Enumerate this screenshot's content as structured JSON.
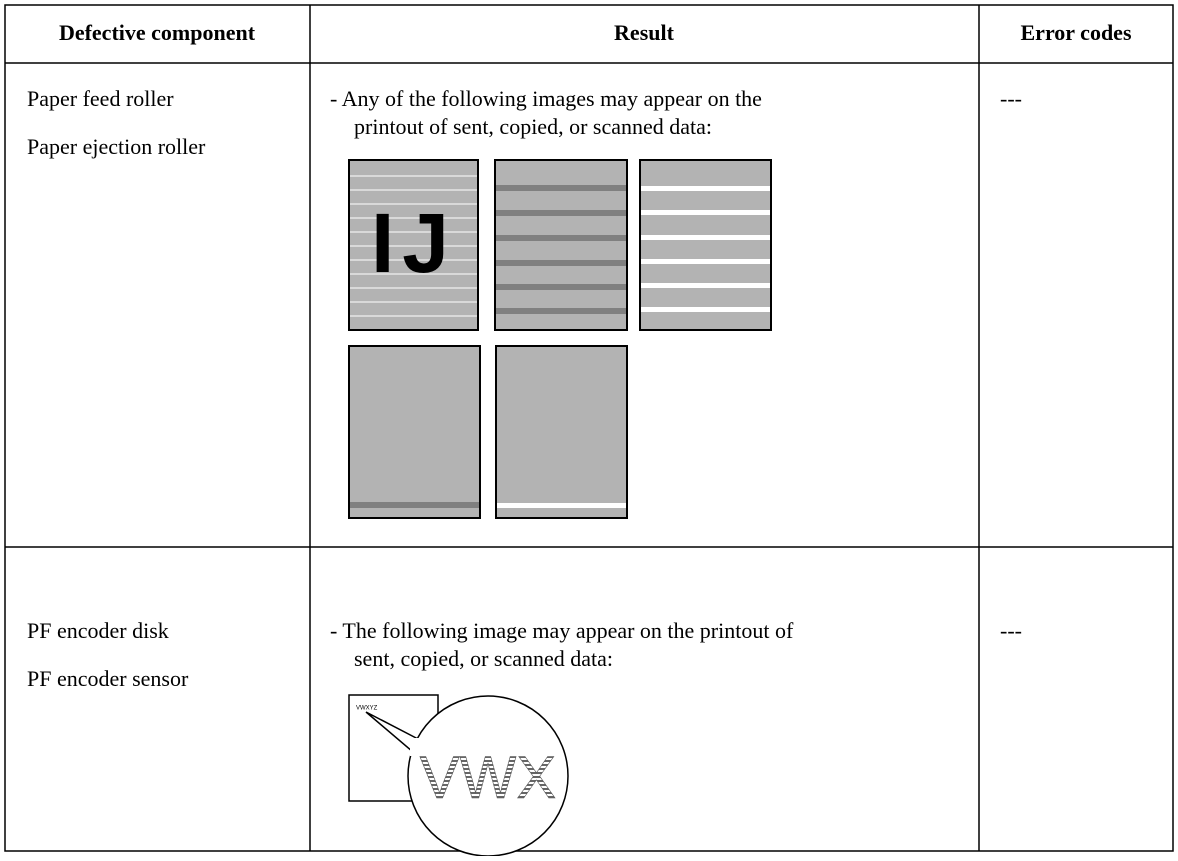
{
  "table": {
    "header": [
      "Defective component",
      "Result",
      "Error codes"
    ],
    "rows": [
      {
        "components": [
          "Paper feed roller",
          "Paper ejection roller"
        ],
        "result": [
          "- Any of the following images may appear on the",
          "printout of sent, copied, or scanned data:"
        ],
        "illustration_text": "IJ",
        "error_codes": "---"
      },
      {
        "components": [
          "PF encoder disk",
          "PF encoder sensor"
        ],
        "result": [
          "- The following image may appear on the printout of",
          "sent, copied, or scanned data:"
        ],
        "illustration_text": "VWXYZ",
        "magnified_text": "VWX",
        "error_codes": "---"
      }
    ]
  }
}
